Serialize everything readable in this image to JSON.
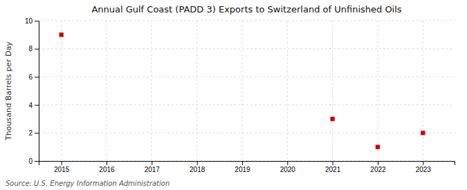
{
  "chart_data": {
    "type": "scatter",
    "title": "Annual Gulf Coast (PADD 3) Exports to Switzerland of Unfinished Oils",
    "ylabel": "Thousand Barrels per Day",
    "source": "Source: U.S. Energy Information Administration",
    "x": [
      2015,
      2021,
      2022,
      2023
    ],
    "values": [
      9.0,
      3.0,
      1.0,
      2.0
    ],
    "color": "#cc0000",
    "marker": "square",
    "xlim": [
      2014.5,
      2023.7
    ],
    "ylim": [
      0,
      10
    ],
    "xticks": [
      2015,
      2016,
      2017,
      2018,
      2019,
      2020,
      2021,
      2022,
      2023
    ],
    "yticks": [
      0,
      2,
      4,
      6,
      8,
      10
    ],
    "grid": true
  }
}
